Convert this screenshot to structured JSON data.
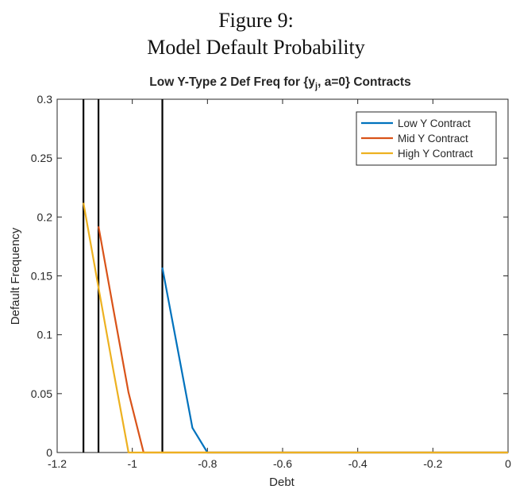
{
  "figure": {
    "caption_line1": "Figure 9:",
    "caption_line2": "Model Default Probability"
  },
  "chart_data": {
    "type": "line",
    "title_prefix": "Low Y-Type 2 Def Freq for {y",
    "title_subscript": "j",
    "title_suffix": ", a=0} Contracts",
    "xlabel": "Debt",
    "ylabel": "Default Frequency",
    "xlim": [
      -1.2,
      0
    ],
    "ylim": [
      0,
      0.3
    ],
    "xticks": [
      -1.2,
      -1,
      -0.8,
      -0.6,
      -0.4,
      -0.2,
      0
    ],
    "xtick_labels": [
      "-1.2",
      "-1",
      "-0.8",
      "-0.6",
      "-0.4",
      "-0.2",
      "0"
    ],
    "yticks": [
      0,
      0.05,
      0.1,
      0.15,
      0.2,
      0.25,
      0.3
    ],
    "ytick_labels": [
      "0",
      "0.05",
      "0.1",
      "0.15",
      "0.2",
      "0.25",
      "0.3"
    ],
    "grid": false,
    "legend_position": "top-right",
    "series": [
      {
        "name": "Low Y Contract",
        "color": "#0072BD",
        "x": [
          -0.92,
          -0.88,
          -0.84,
          -0.8,
          -0.76,
          -0.72,
          0
        ],
        "y": [
          0.157,
          0.089,
          0.021,
          0,
          0,
          0,
          0
        ]
      },
      {
        "name": "Mid Y Contract",
        "color": "#D95319",
        "x": [
          -1.09,
          -1.05,
          -1.01,
          -0.97,
          -0.93,
          -0.89,
          0
        ],
        "y": [
          0.192,
          0.121,
          0.051,
          0,
          0,
          0,
          0
        ]
      },
      {
        "name": "High Y Contract",
        "color": "#EDB120",
        "x": [
          -1.13,
          -1.09,
          -1.05,
          -1.01,
          -0.97,
          0
        ],
        "y": [
          0.212,
          0.14,
          0.069,
          0,
          0,
          0
        ]
      }
    ],
    "vertical_lines": {
      "color": "#000000",
      "x": [
        -1.13,
        -1.09,
        -0.92
      ]
    }
  }
}
